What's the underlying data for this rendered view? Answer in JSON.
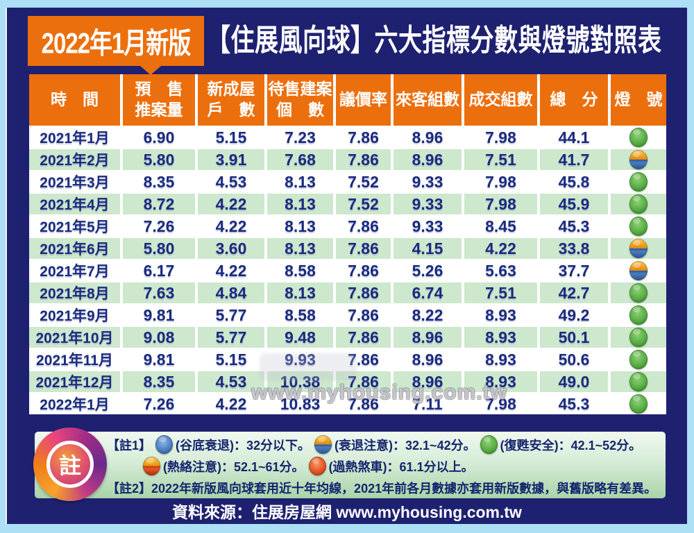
{
  "colors": {
    "background": "#aee0f5",
    "panel_navy": "#1e2170",
    "accent_orange": "#ec6f0e",
    "row_green": "#cde8cd",
    "text_navy": "#1b2a7e",
    "light_green": "#3f9c34",
    "light_blue": "#3a6cb0",
    "light_red": "#d83a18",
    "light_caution_top": "#f0a21f",
    "light_caution_bottom": "#3a6cb0",
    "light_hot_top": "#f2a922",
    "light_hot_bottom": "#c83c12"
  },
  "title": {
    "badge": "2022年1月新版",
    "main": "【住展風向球】六大指標分數與燈號對照表"
  },
  "table": {
    "header_lines": [
      [
        "時　間"
      ],
      [
        "預　售",
        "推案量"
      ],
      [
        "新成屋",
        "戶　數"
      ],
      [
        "待售建案",
        "個　數"
      ],
      [
        "議價率"
      ],
      [
        "來客組數"
      ],
      [
        "成交組數"
      ],
      [
        "總　分"
      ],
      [
        "燈　號"
      ]
    ]
  },
  "chart_data": {
    "type": "table",
    "title": "2022年1月新版【住展風向球】六大指標分數與燈號對照表",
    "columns": [
      "時間",
      "預售推案量",
      "新成屋戶數",
      "待售建案個數",
      "議價率",
      "來客組數",
      "成交組數",
      "總分",
      "燈號"
    ],
    "rows": [
      {
        "time": "2021年1月",
        "values": [
          "6.90",
          "5.15",
          "7.23",
          "7.86",
          "8.96",
          "7.98",
          "44.1"
        ],
        "light": "green"
      },
      {
        "time": "2021年2月",
        "values": [
          "5.80",
          "3.91",
          "7.68",
          "7.86",
          "8.96",
          "7.51",
          "41.7"
        ],
        "light": "caution"
      },
      {
        "time": "2021年3月",
        "values": [
          "8.35",
          "4.53",
          "8.13",
          "7.52",
          "9.33",
          "7.98",
          "45.8"
        ],
        "light": "green"
      },
      {
        "time": "2021年4月",
        "values": [
          "8.72",
          "4.22",
          "8.13",
          "7.52",
          "9.33",
          "7.98",
          "45.9"
        ],
        "light": "green"
      },
      {
        "time": "2021年5月",
        "values": [
          "7.26",
          "4.22",
          "8.13",
          "7.86",
          "9.33",
          "8.45",
          "45.3"
        ],
        "light": "green"
      },
      {
        "time": "2021年6月",
        "values": [
          "5.80",
          "3.60",
          "8.13",
          "7.86",
          "4.15",
          "4.22",
          "33.8"
        ],
        "light": "caution"
      },
      {
        "time": "2021年7月",
        "values": [
          "6.17",
          "4.22",
          "8.58",
          "7.86",
          "5.26",
          "5.63",
          "37.7"
        ],
        "light": "caution"
      },
      {
        "time": "2021年8月",
        "values": [
          "7.63",
          "4.84",
          "8.13",
          "7.86",
          "6.74",
          "7.51",
          "42.7"
        ],
        "light": "green"
      },
      {
        "time": "2021年9月",
        "values": [
          "9.81",
          "5.77",
          "8.58",
          "7.86",
          "8.22",
          "8.93",
          "49.2"
        ],
        "light": "green"
      },
      {
        "time": "2021年10月",
        "values": [
          "9.08",
          "5.77",
          "9.48",
          "7.86",
          "8.96",
          "8.93",
          "50.1"
        ],
        "light": "green"
      },
      {
        "time": "2021年11月",
        "values": [
          "9.81",
          "5.15",
          "9.93",
          "7.86",
          "8.96",
          "8.93",
          "50.6"
        ],
        "light": "green"
      },
      {
        "time": "2021年12月",
        "values": [
          "8.35",
          "4.53",
          "10.38",
          "7.86",
          "8.96",
          "8.93",
          "49.0"
        ],
        "light": "green"
      },
      {
        "time": "2022年1月",
        "values": [
          "7.26",
          "4.22",
          "10.83",
          "7.86",
          "7.11",
          "7.98",
          "45.3"
        ],
        "light": "green"
      }
    ],
    "light_legend": {
      "blue": "谷底衰退",
      "caution": "衰退注意",
      "green": "復甦安全",
      "hot": "熱絡注意",
      "red": "過熱煞車"
    }
  },
  "legend": {
    "badge": "註",
    "note1_label": "【註1】",
    "items": [
      {
        "light": "blue",
        "text": "(谷底衰退)：32分以下。"
      },
      {
        "light": "caution",
        "text": "(衰退注意)：32.1~42分。"
      },
      {
        "light": "green",
        "text": "(復甦安全)：42.1~52分。"
      },
      {
        "light": "hot",
        "text": "(熱絡注意)：52.1~61分。"
      },
      {
        "light": "red",
        "text": "(過熱煞車)：61.1分以上。"
      }
    ],
    "note2": "【註2】2022年新版風向球套用近十年均線，2021年前各月數據亦套用新版數據，與舊版略有差異。"
  },
  "watermark": "www.myhousing.com.tw",
  "source": "資料來源：住展房屋網 www.myhousing.com.tw"
}
